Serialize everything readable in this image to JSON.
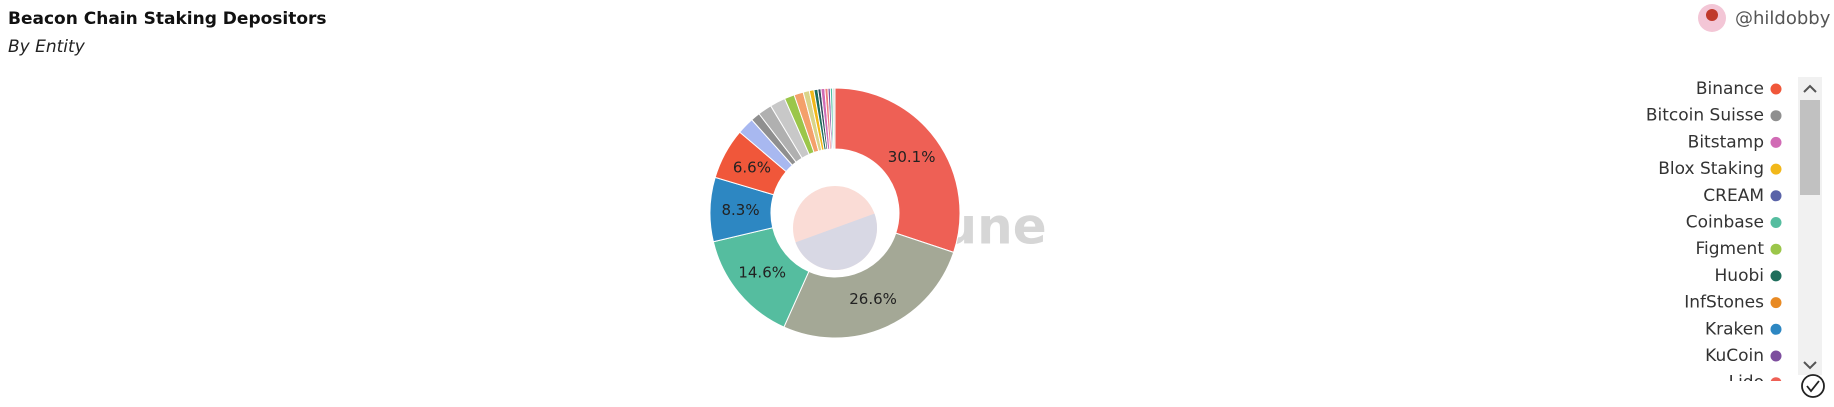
{
  "chart_data": {
    "type": "pie",
    "title": "Beacon Chain Staking Depositors",
    "subtitle": "By Entity",
    "author": "@hildobby",
    "watermark": "Dune",
    "values": [
      30.1,
      26.6,
      14.6,
      8.3,
      6.6,
      2.2,
      1.2,
      1.8,
      2.0,
      1.3,
      1.2,
      0.8,
      0.6,
      0.5,
      0.4,
      0.5,
      0.4,
      0.3,
      0.3,
      0.3
    ],
    "value_labels": [
      "30.1%",
      "26.6%",
      "14.6%",
      "8.3%",
      "6.6%",
      null,
      null,
      null,
      null,
      null,
      null,
      null,
      null,
      null,
      null,
      null,
      null,
      null,
      null,
      null
    ],
    "colors": [
      "#ee6055",
      "#a4a896",
      "#55bd9f",
      "#2d87c2",
      "#f0573a",
      "#a8b8f0",
      "#8f8f8f",
      "#b0b0b0",
      "#c8c8c8",
      "#9bc64a",
      "#f4a06b",
      "#d9d48a",
      "#f2b81a",
      "#1f6e5c",
      "#34495e",
      "#d16bb5",
      "#f08080",
      "#7d4e9e",
      "#4fbfa0",
      "#dcdcdc"
    ],
    "legend": [
      {
        "name": "Binance",
        "color": "#f0573a"
      },
      {
        "name": "Bitcoin Suisse",
        "color": "#8f8f8f"
      },
      {
        "name": "Bitstamp",
        "color": "#d16bb5"
      },
      {
        "name": "Blox Staking",
        "color": "#f2b81a"
      },
      {
        "name": "CREAM",
        "color": "#5a63a8"
      },
      {
        "name": "Coinbase",
        "color": "#55bd9f"
      },
      {
        "name": "Figment",
        "color": "#9bc64a"
      },
      {
        "name": "Huobi",
        "color": "#1f6e5c"
      },
      {
        "name": "InfStones",
        "color": "#e88a24"
      },
      {
        "name": "Kraken",
        "color": "#2d87c2"
      },
      {
        "name": "KuCoin",
        "color": "#7d4e9e"
      },
      {
        "name": "Lido",
        "color": "#ee6055"
      }
    ]
  }
}
